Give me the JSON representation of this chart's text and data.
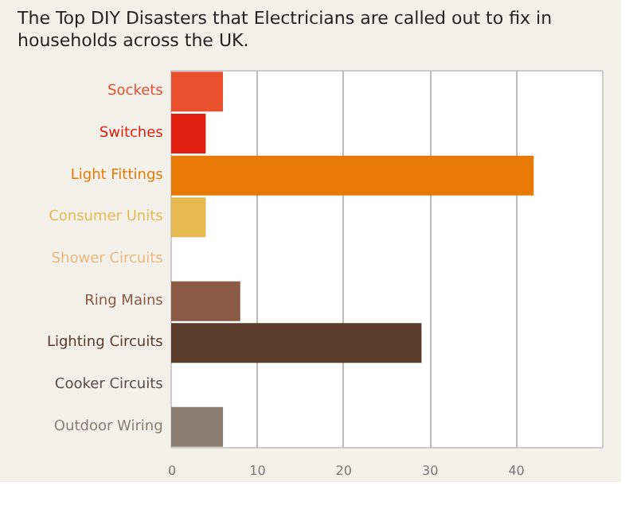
{
  "chart_data": {
    "type": "bar",
    "orientation": "horizontal",
    "title": "The Top DIY Disasters that Electricians are called out to fix in households across the UK.",
    "categories": [
      "Sockets",
      "Switches",
      "Light Fittings",
      "Consumer Units",
      "Shower Circuits",
      "Ring Mains",
      "Lighting Circuits",
      "Cooker Circuits",
      "Outdoor Wiring"
    ],
    "values": [
      6,
      4,
      42,
      4,
      0,
      8,
      29,
      0,
      6
    ],
    "colors": [
      "#e8502e",
      "#e0200f",
      "#e67a05",
      "#e6b850",
      "#e8b880",
      "#8a5a45",
      "#5a3a2a",
      "#5a4a40",
      "#8a7d70"
    ],
    "xlim": [
      0,
      50
    ],
    "xticks": [
      0,
      10,
      20,
      30,
      40
    ],
    "grid": "x"
  }
}
